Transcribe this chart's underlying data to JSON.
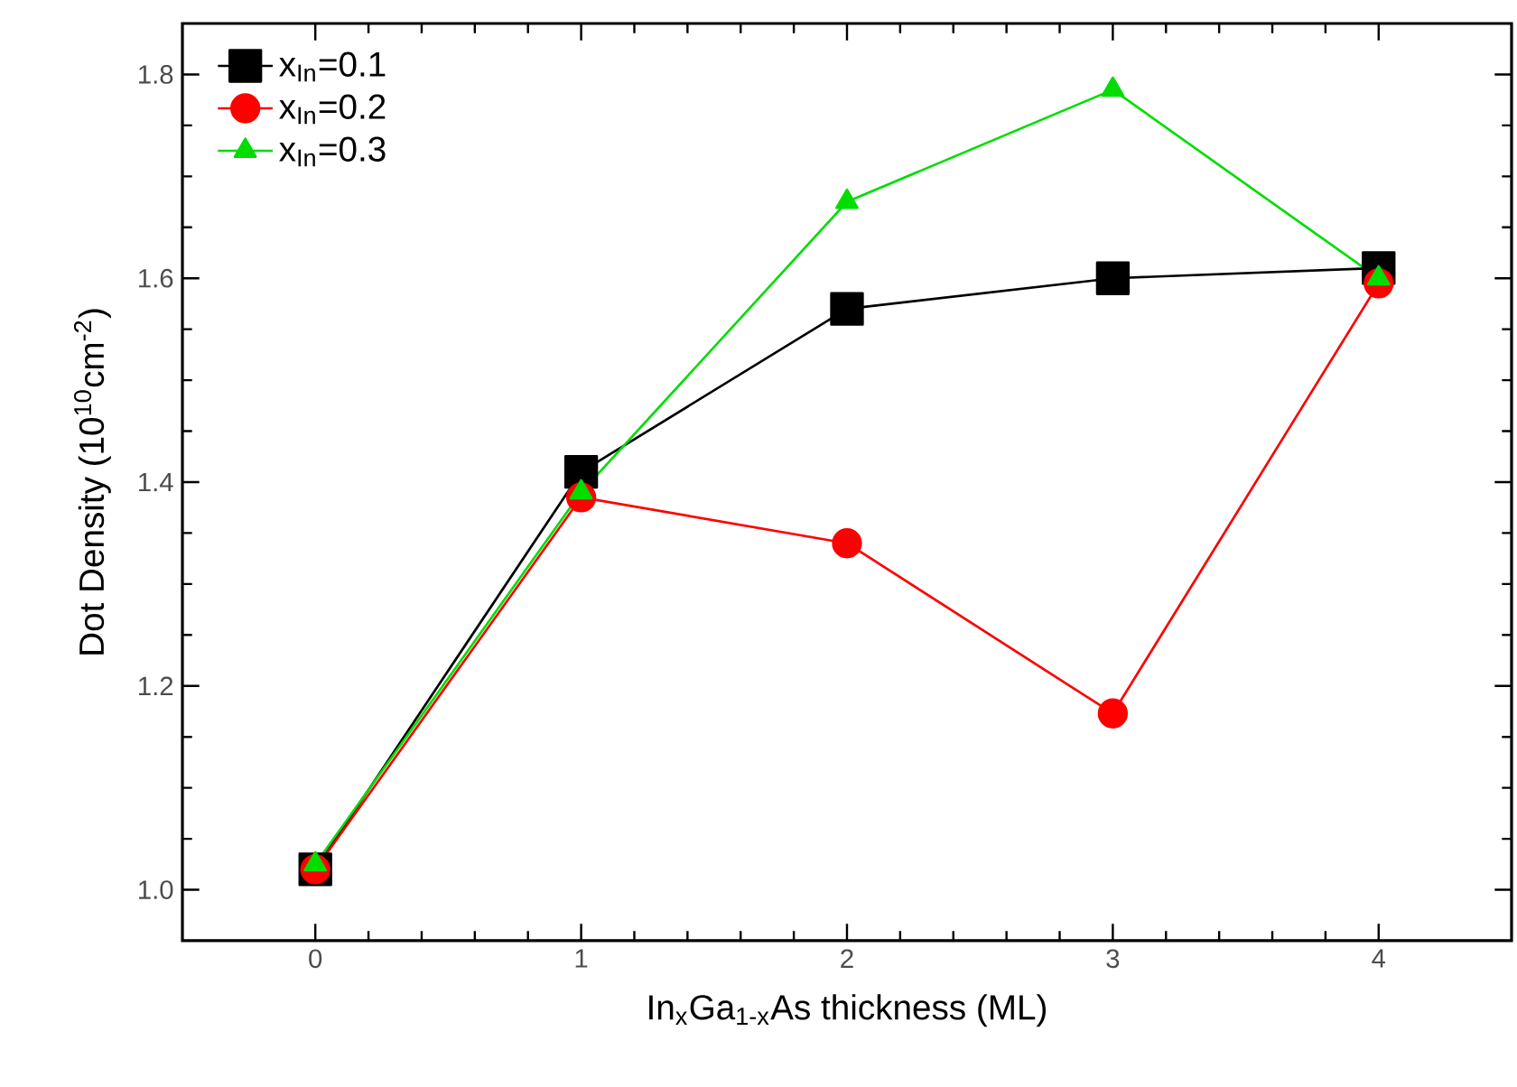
{
  "chart_data": {
    "type": "line",
    "xlabel": "In$_{x}$Ga$_{1-x}$As thickness (ML)",
    "ylabel": "Dot Density (10$^{10}$cm$^{-2}$)",
    "x": [
      0,
      1,
      2,
      3,
      4
    ],
    "series": [
      {
        "name": "x$_{In}$=0.1",
        "color": "#000000",
        "marker": "square",
        "values": [
          1.02,
          1.41,
          1.57,
          1.6,
          1.61
        ]
      },
      {
        "name": "x$_{In}$=0.2",
        "color": "#ff0000",
        "marker": "circle",
        "values": [
          1.02,
          1.385,
          1.34,
          1.173,
          1.595
        ]
      },
      {
        "name": "x$_{In}$=0.3",
        "color": "#00dd00",
        "marker": "triangle",
        "values": [
          1.025,
          1.39,
          1.675,
          1.785,
          1.6
        ]
      }
    ],
    "xlim": [
      -0.5,
      4.5
    ],
    "ylim": [
      0.95,
      1.85
    ],
    "xticks": [
      0,
      1,
      2,
      3,
      4
    ],
    "yticks": [
      {
        "value": 1.0,
        "label": "1.0"
      },
      {
        "value": 1.2,
        "label": "1.2"
      },
      {
        "value": 1.4,
        "label": "1.4"
      },
      {
        "value": 1.6,
        "label": "1.6"
      },
      {
        "value": 1.8,
        "label": "1.8"
      }
    ],
    "legend": "top left",
    "grid": false,
    "line_style": "solid"
  }
}
